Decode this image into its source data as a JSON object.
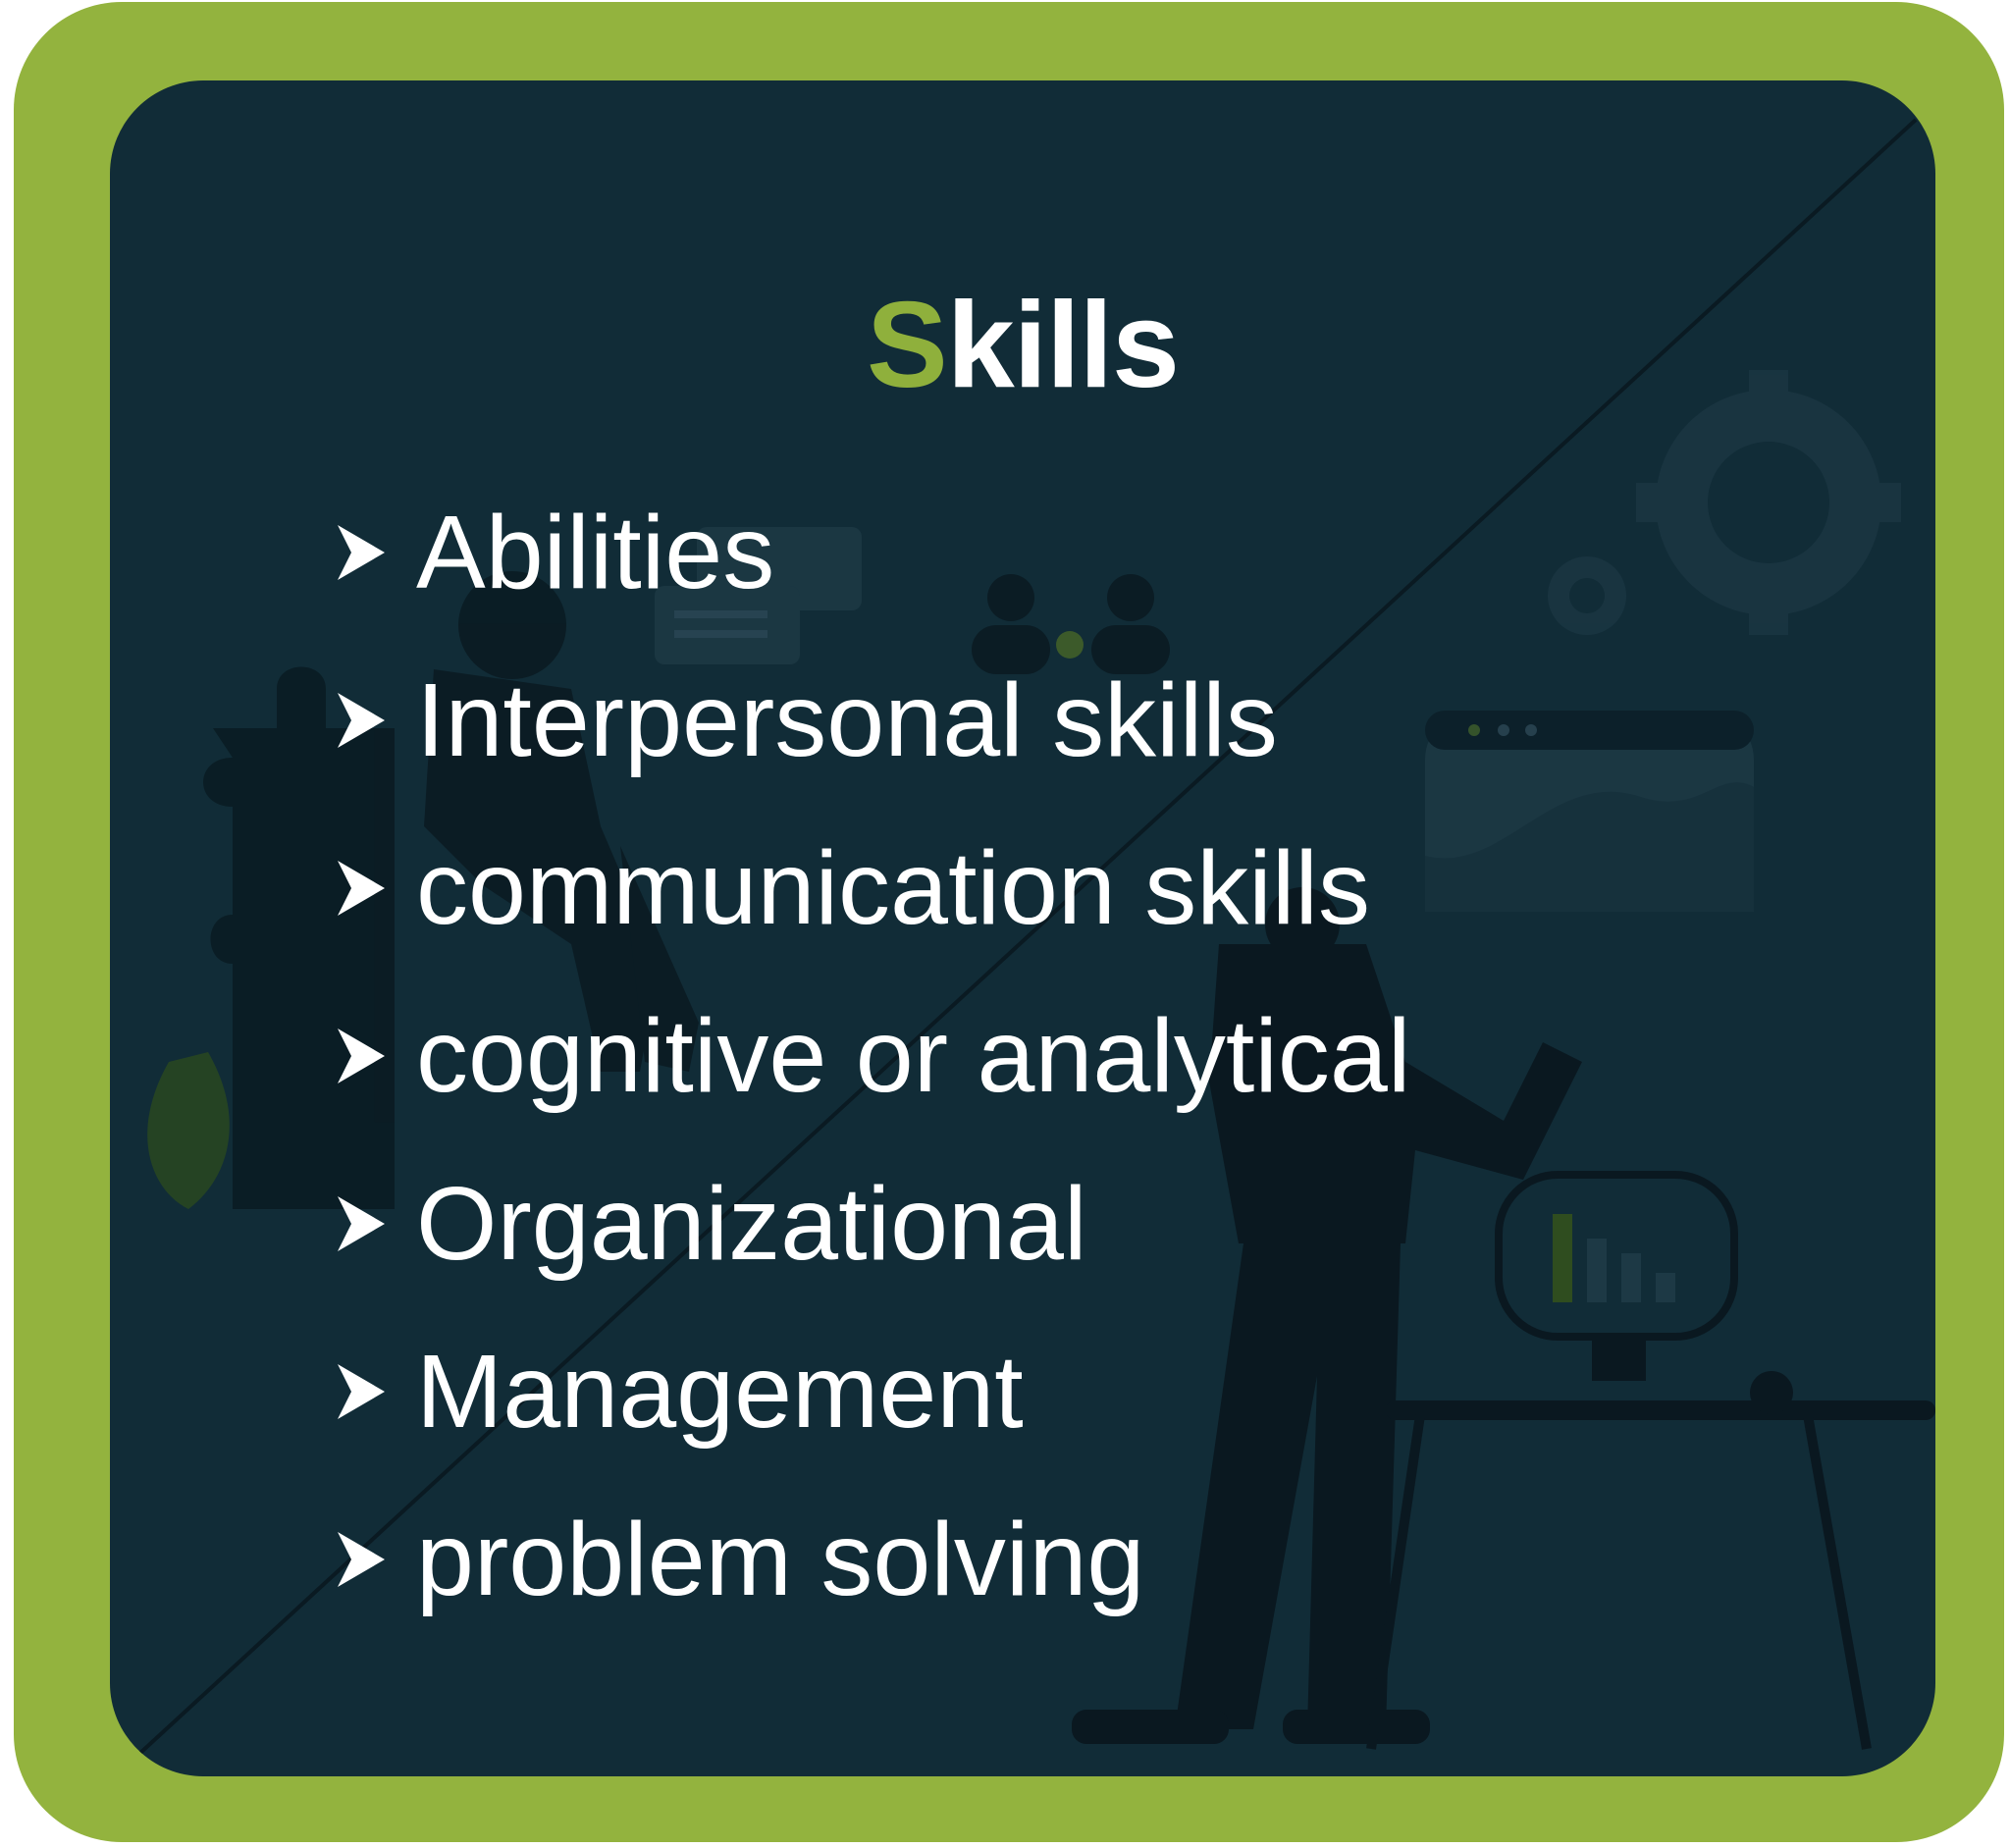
{
  "title": {
    "accent_letter": "S",
    "rest": "kills"
  },
  "skills": [
    {
      "label": "Abilities"
    },
    {
      "label": "Interpersonal skills"
    },
    {
      "label": "communication skills"
    },
    {
      "label": "cognitive or analytical"
    },
    {
      "label": "Organizational"
    },
    {
      "label": "Management"
    },
    {
      "label": "problem solving"
    }
  ],
  "icons": {
    "bullet": "chevron-right-icon"
  },
  "colors": {
    "frame": "#93b33e",
    "card": "#112c37",
    "accent": "#8fb03c",
    "text": "#ffffff"
  }
}
